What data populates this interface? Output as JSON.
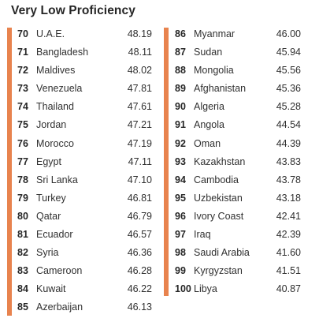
{
  "title": "Very Low Proficiency",
  "left_column": [
    {
      "rank": "70",
      "country": "U.A.E.",
      "score": "48.19"
    },
    {
      "rank": "71",
      "country": "Bangladesh",
      "score": "48.11"
    },
    {
      "rank": "72",
      "country": "Maldives",
      "score": "48.02"
    },
    {
      "rank": "73",
      "country": "Venezuela",
      "score": "47.81"
    },
    {
      "rank": "74",
      "country": "Thailand",
      "score": "47.61"
    },
    {
      "rank": "75",
      "country": "Jordan",
      "score": "47.21"
    },
    {
      "rank": "76",
      "country": "Morocco",
      "score": "47.19"
    },
    {
      "rank": "77",
      "country": "Egypt",
      "score": "47.11"
    },
    {
      "rank": "78",
      "country": "Sri Lanka",
      "score": "47.10"
    },
    {
      "rank": "79",
      "country": "Turkey",
      "score": "46.81"
    },
    {
      "rank": "80",
      "country": "Qatar",
      "score": "46.79"
    },
    {
      "rank": "81",
      "country": "Ecuador",
      "score": "46.57"
    },
    {
      "rank": "82",
      "country": "Syria",
      "score": "46.36"
    },
    {
      "rank": "83",
      "country": "Cameroon",
      "score": "46.28"
    },
    {
      "rank": "84",
      "country": "Kuwait",
      "score": "46.22"
    },
    {
      "rank": "85",
      "country": "Azerbaijan",
      "score": "46.13"
    }
  ],
  "right_column": [
    {
      "rank": "86",
      "country": "Myanmar",
      "score": "46.00"
    },
    {
      "rank": "87",
      "country": "Sudan",
      "score": "45.94"
    },
    {
      "rank": "88",
      "country": "Mongolia",
      "score": "45.56"
    },
    {
      "rank": "89",
      "country": "Afghanistan",
      "score": "45.36"
    },
    {
      "rank": "90",
      "country": "Algeria",
      "score": "45.28"
    },
    {
      "rank": "91",
      "country": "Angola",
      "score": "44.54"
    },
    {
      "rank": "92",
      "country": "Oman",
      "score": "44.39"
    },
    {
      "rank": "93",
      "country": "Kazakhstan",
      "score": "43.83"
    },
    {
      "rank": "94",
      "country": "Cambodia",
      "score": "43.78"
    },
    {
      "rank": "95",
      "country": "Uzbekistan",
      "score": "43.18"
    },
    {
      "rank": "96",
      "country": "Ivory Coast",
      "score": "42.41"
    },
    {
      "rank": "97",
      "country": "Iraq",
      "score": "42.39"
    },
    {
      "rank": "98",
      "country": "Saudi Arabia",
      "score": "41.60"
    },
    {
      "rank": "99",
      "country": "Kyrgyzstan",
      "score": "41.51"
    },
    {
      "rank": "100",
      "country": "Libya",
      "score": "40.87"
    }
  ],
  "colors": {
    "accent_bar": "#e8834e",
    "text": "#2b2b2b"
  }
}
